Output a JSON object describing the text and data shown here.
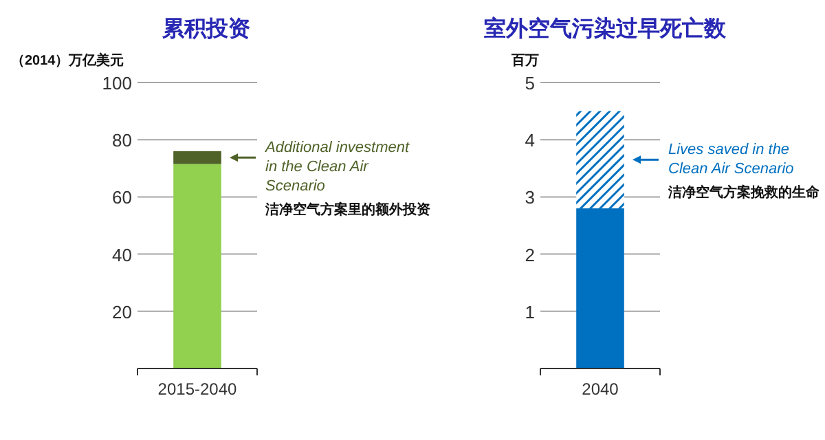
{
  "chart_data": [
    {
      "type": "bar",
      "title": "累积投资",
      "ylabel": "（2014）万亿美元",
      "categories": [
        "2015-2040"
      ],
      "stacked": true,
      "ylim": [
        0,
        100
      ],
      "yticks": [
        20,
        40,
        60,
        80,
        100
      ],
      "grid": "y",
      "series": [
        {
          "color": "#92d050",
          "values": [
            71.5
          ]
        },
        {
          "color": "#4f6228",
          "values": [
            4.5
          ]
        }
      ],
      "annotations": [
        "Additional investment in the Clean Air Scenario",
        "洁净空气方案里的额外投资"
      ]
    },
    {
      "type": "bar",
      "title": "室外空气污染过早死亡数",
      "ylabel": "百万",
      "categories": [
        "2040"
      ],
      "stacked": true,
      "ylim": [
        0,
        5
      ],
      "yticks": [
        1,
        2,
        3,
        4,
        5
      ],
      "grid": "y",
      "series": [
        {
          "color": "#0070c0",
          "values": [
            2.8
          ]
        },
        {
          "color": "#0070c0",
          "values": [
            1.7
          ]
        }
      ],
      "annotations": [
        "Lives saved in the Clean Air Scenario",
        "洁净空气方案挽救的生命"
      ]
    }
  ]
}
